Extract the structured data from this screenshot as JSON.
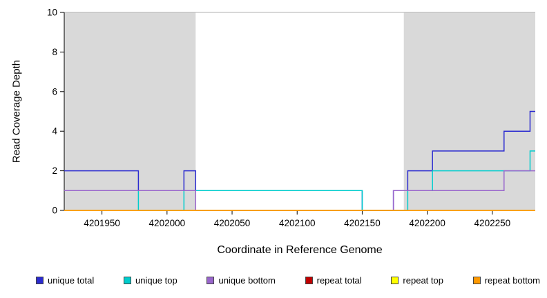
{
  "chart_data": {
    "type": "line",
    "subtype": "step-coverage",
    "title": "",
    "xlabel": "Coordinate in Reference Genome",
    "ylabel": "Read Coverage Depth",
    "xlim": [
      4201921,
      4202283
    ],
    "ylim": [
      0,
      10
    ],
    "xticks": [
      4201950,
      4202000,
      4202050,
      4202100,
      4202150,
      4202200,
      4202250
    ],
    "yticks": [
      0,
      2,
      4,
      6,
      8,
      10
    ],
    "grid": false,
    "legend_position": "bottom",
    "plot_background": "#ffffff",
    "box_top_color": "#b0b0b0",
    "axis_color": "#000000",
    "shaded_regions": [
      {
        "x_start": 4201921,
        "x_end": 4202022,
        "color": "#d9d9d9",
        "label": "shaded-region-left"
      },
      {
        "x_start": 4202182,
        "x_end": 4202283,
        "color": "#d9d9d9",
        "label": "shaded-region-right"
      }
    ],
    "series": [
      {
        "name": "unique total",
        "color": "#2b2bd0",
        "step_points": [
          [
            4201921,
            2
          ],
          [
            4201978,
            1
          ],
          [
            4202013,
            2
          ],
          [
            4202022,
            1
          ],
          [
            4202150,
            0
          ],
          [
            4202174,
            1
          ],
          [
            4202185,
            2
          ],
          [
            4202204,
            3
          ],
          [
            4202259,
            4
          ],
          [
            4202279,
            5
          ]
        ]
      },
      {
        "name": "unique top",
        "color": "#00cdcd",
        "step_points": [
          [
            4201921,
            1
          ],
          [
            4201978,
            0
          ],
          [
            4202013,
            1
          ],
          [
            4202150,
            0
          ],
          [
            4202185,
            1
          ],
          [
            4202204,
            2
          ],
          [
            4202279,
            3
          ]
        ]
      },
      {
        "name": "unique bottom",
        "color": "#9966cc",
        "step_points": [
          [
            4201921,
            1
          ],
          [
            4202022,
            0
          ],
          [
            4202174,
            1
          ],
          [
            4202259,
            2
          ]
        ]
      },
      {
        "name": "repeat total",
        "color": "#c00000",
        "step_points": [
          [
            4201921,
            0
          ]
        ]
      },
      {
        "name": "repeat top",
        "color": "#ffff00",
        "step_points": [
          [
            4201921,
            0
          ]
        ]
      },
      {
        "name": "repeat bottom",
        "color": "#ff9900",
        "step_points": [
          [
            4201921,
            0
          ]
        ]
      }
    ]
  }
}
